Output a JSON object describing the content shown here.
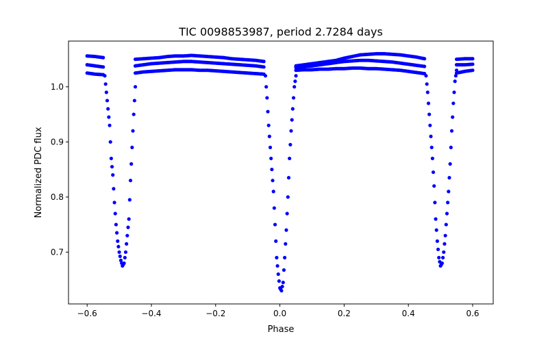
{
  "chart_data": {
    "type": "scatter",
    "title": "TIC 0098853987, period 2.7284 days",
    "xlabel": "Phase",
    "ylabel": "Normalized PDC flux",
    "xlim": [
      -0.658,
      0.664
    ],
    "ylim": [
      0.606,
      1.083
    ],
    "xticks": [
      -0.6,
      -0.4,
      -0.2,
      0.0,
      0.2,
      0.4,
      0.6
    ],
    "xtick_labels": [
      "−0.6",
      "−0.4",
      "−0.2",
      "0.0",
      "0.2",
      "0.4",
      "0.6"
    ],
    "yticks": [
      0.7,
      0.8,
      0.9,
      1.0
    ],
    "ytick_labels": [
      "0.7",
      "0.8",
      "0.9",
      "1.0"
    ],
    "grid": false,
    "marker_color": "#0000ff",
    "out_of_eclipse": {
      "x": [
        -0.6,
        -0.575,
        -0.55,
        -0.45,
        -0.425,
        -0.4,
        -0.375,
        -0.35,
        -0.325,
        -0.3,
        -0.275,
        -0.25,
        -0.225,
        -0.2,
        -0.175,
        -0.15,
        -0.125,
        -0.1,
        -0.075,
        -0.05,
        0.05,
        0.075,
        0.1,
        0.125,
        0.15,
        0.175,
        0.2,
        0.225,
        0.25,
        0.275,
        0.3,
        0.325,
        0.35,
        0.375,
        0.4,
        0.425,
        0.45,
        0.55,
        0.575,
        0.6
      ],
      "series": [
        {
          "name": "upper",
          "y": [
            1.056,
            1.055,
            1.053,
            1.05,
            1.051,
            1.052,
            1.053,
            1.055,
            1.056,
            1.056,
            1.057,
            1.056,
            1.055,
            1.054,
            1.053,
            1.051,
            1.05,
            1.049,
            1.048,
            1.046,
            1.038,
            1.04,
            1.042,
            1.044,
            1.046,
            1.048,
            1.052,
            1.055,
            1.058,
            1.059,
            1.06,
            1.06,
            1.059,
            1.058,
            1.056,
            1.054,
            1.051,
            1.05,
            1.051,
            1.051
          ]
        },
        {
          "name": "middle",
          "y": [
            1.04,
            1.038,
            1.036,
            1.038,
            1.04,
            1.042,
            1.043,
            1.044,
            1.045,
            1.046,
            1.046,
            1.045,
            1.044,
            1.043,
            1.042,
            1.041,
            1.04,
            1.039,
            1.038,
            1.036,
            1.035,
            1.037,
            1.038,
            1.04,
            1.042,
            1.044,
            1.046,
            1.047,
            1.048,
            1.048,
            1.047,
            1.046,
            1.045,
            1.043,
            1.041,
            1.039,
            1.037,
            1.04,
            1.04,
            1.041
          ]
        },
        {
          "name": "lower",
          "y": [
            1.025,
            1.023,
            1.022,
            1.025,
            1.027,
            1.028,
            1.029,
            1.03,
            1.031,
            1.031,
            1.031,
            1.03,
            1.03,
            1.029,
            1.028,
            1.027,
            1.026,
            1.025,
            1.024,
            1.023,
            1.03,
            1.031,
            1.031,
            1.032,
            1.032,
            1.033,
            1.033,
            1.034,
            1.034,
            1.033,
            1.033,
            1.032,
            1.031,
            1.03,
            1.028,
            1.026,
            1.024,
            1.025,
            1.028,
            1.03
          ]
        }
      ]
    },
    "eclipses": [
      {
        "name": "secondary-left",
        "points": [
          [
            -0.545,
            1.02
          ],
          [
            -0.54,
            0.99
          ],
          [
            -0.535,
            0.96
          ],
          [
            -0.53,
            0.93
          ],
          [
            -0.525,
            0.87
          ],
          [
            -0.52,
            0.84
          ],
          [
            -0.515,
            0.79
          ],
          [
            -0.51,
            0.75
          ],
          [
            -0.505,
            0.72
          ],
          [
            -0.5,
            0.7
          ],
          [
            -0.495,
            0.685
          ],
          [
            -0.49,
            0.675
          ],
          [
            -0.485,
            0.68
          ],
          [
            -0.48,
            0.7
          ],
          [
            -0.475,
            0.73
          ],
          [
            -0.47,
            0.76
          ],
          [
            -0.465,
            0.83
          ],
          [
            -0.46,
            0.89
          ],
          [
            -0.455,
            0.95
          ],
          [
            -0.45,
            1.0
          ]
        ]
      },
      {
        "name": "primary",
        "points": [
          [
            -0.045,
            1.02
          ],
          [
            -0.04,
            0.98
          ],
          [
            -0.035,
            0.93
          ],
          [
            -0.03,
            0.89
          ],
          [
            -0.025,
            0.85
          ],
          [
            -0.02,
            0.81
          ],
          [
            -0.015,
            0.75
          ],
          [
            -0.01,
            0.69
          ],
          [
            -0.005,
            0.66
          ],
          [
            0,
            0.635
          ],
          [
            0.005,
            0.63
          ],
          [
            0.01,
            0.645
          ],
          [
            0.015,
            0.69
          ],
          [
            0.02,
            0.74
          ],
          [
            0.025,
            0.8
          ],
          [
            0.03,
            0.87
          ],
          [
            0.035,
            0.92
          ],
          [
            0.04,
            0.96
          ],
          [
            0.045,
            1.0
          ],
          [
            0.05,
            1.02
          ]
        ]
      },
      {
        "name": "secondary-right",
        "points": [
          [
            0.455,
            1.02
          ],
          [
            0.46,
            0.99
          ],
          [
            0.465,
            0.95
          ],
          [
            0.47,
            0.91
          ],
          [
            0.475,
            0.87
          ],
          [
            0.48,
            0.82
          ],
          [
            0.485,
            0.76
          ],
          [
            0.49,
            0.72
          ],
          [
            0.495,
            0.69
          ],
          [
            0.5,
            0.675
          ],
          [
            0.505,
            0.68
          ],
          [
            0.51,
            0.7
          ],
          [
            0.515,
            0.73
          ],
          [
            0.52,
            0.77
          ],
          [
            0.525,
            0.81
          ],
          [
            0.53,
            0.86
          ],
          [
            0.535,
            0.92
          ],
          [
            0.54,
            0.97
          ],
          [
            0.545,
            1.01
          ],
          [
            0.55,
            1.03
          ]
        ]
      }
    ]
  }
}
